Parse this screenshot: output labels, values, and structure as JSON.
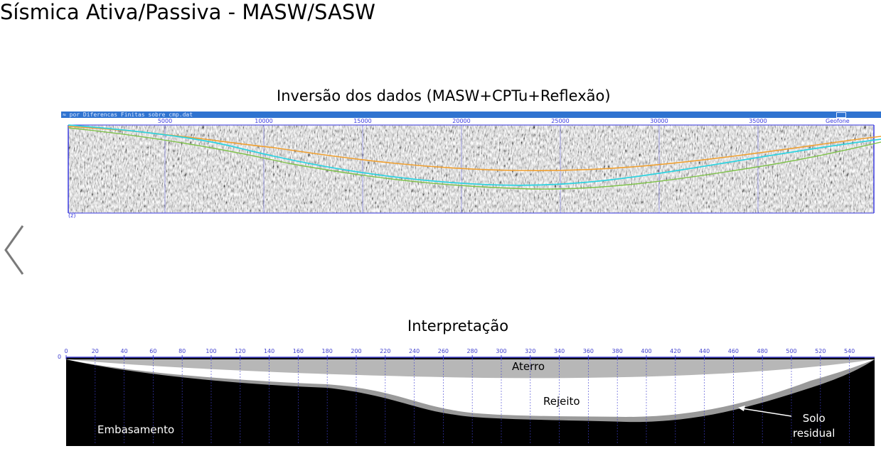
{
  "title": "Sísmica Ativa/Passiva - MASW/SASW",
  "inversion": {
    "title": "Inversão dos dados (MASW+CPTu+Reflexão)",
    "window_bar_text": "≈ por Diferencas Finitas sobre cmp.dat",
    "axis_ticks": [
      "5000",
      "10000",
      "15000",
      "20000",
      "25000",
      "30000",
      "35000"
    ],
    "corner_label": "Geofone",
    "footer_text": "(z)",
    "line_colors": {
      "orange": "#f0a030",
      "cyan": "#2fd3e0",
      "green": "#7fc24a",
      "grid": "#3a3ae0"
    }
  },
  "interpretation": {
    "title": "Interpretação",
    "axis_ticks": [
      "0",
      "20",
      "40",
      "60",
      "80",
      "100",
      "120",
      "140",
      "160",
      "180",
      "200",
      "220",
      "240",
      "260",
      "280",
      "300",
      "320",
      "340",
      "360",
      "380",
      "400",
      "420",
      "440",
      "460",
      "480",
      "500",
      "520",
      "540"
    ],
    "y_tick": "0",
    "layers": {
      "aterro": "Aterro",
      "rejeito": "Rejeito",
      "embasamento": "Embasamento",
      "solo_residual_1": "Solo",
      "solo_residual_2": "residual"
    },
    "colors": {
      "aterro": "#b7b7b7",
      "rejeito": "#ffffff",
      "embasamento": "#000000",
      "solo": "#9a9a9a",
      "axis": "#4040d0"
    }
  },
  "nav": {
    "prev_icon": "chevron-left-icon"
  }
}
